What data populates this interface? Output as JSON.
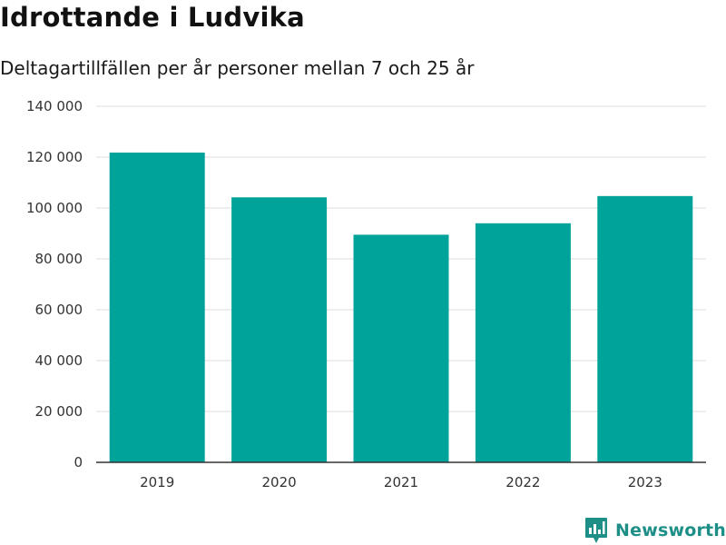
{
  "chart_data": {
    "type": "bar",
    "title": "Idrottande i Ludvika",
    "subtitle": "Deltagartillfällen per år personer mellan 7 och 25 år",
    "categories": [
      "2019",
      "2020",
      "2021",
      "2022",
      "2023"
    ],
    "values": [
      121800,
      104200,
      89500,
      94000,
      104700
    ],
    "ylim": [
      0,
      140000
    ],
    "yticks": [
      0,
      20000,
      40000,
      60000,
      80000,
      100000,
      120000,
      140000
    ],
    "ytick_labels": [
      "0",
      "20 000",
      "40 000",
      "60 000",
      "80 000",
      "100 000",
      "120 000",
      "140 000"
    ],
    "grid": true,
    "bar_color": "#00a39a"
  },
  "branding": {
    "name": "Newsworthy",
    "icon": "newsworthy-logo-icon",
    "color": "#1e8f87"
  }
}
